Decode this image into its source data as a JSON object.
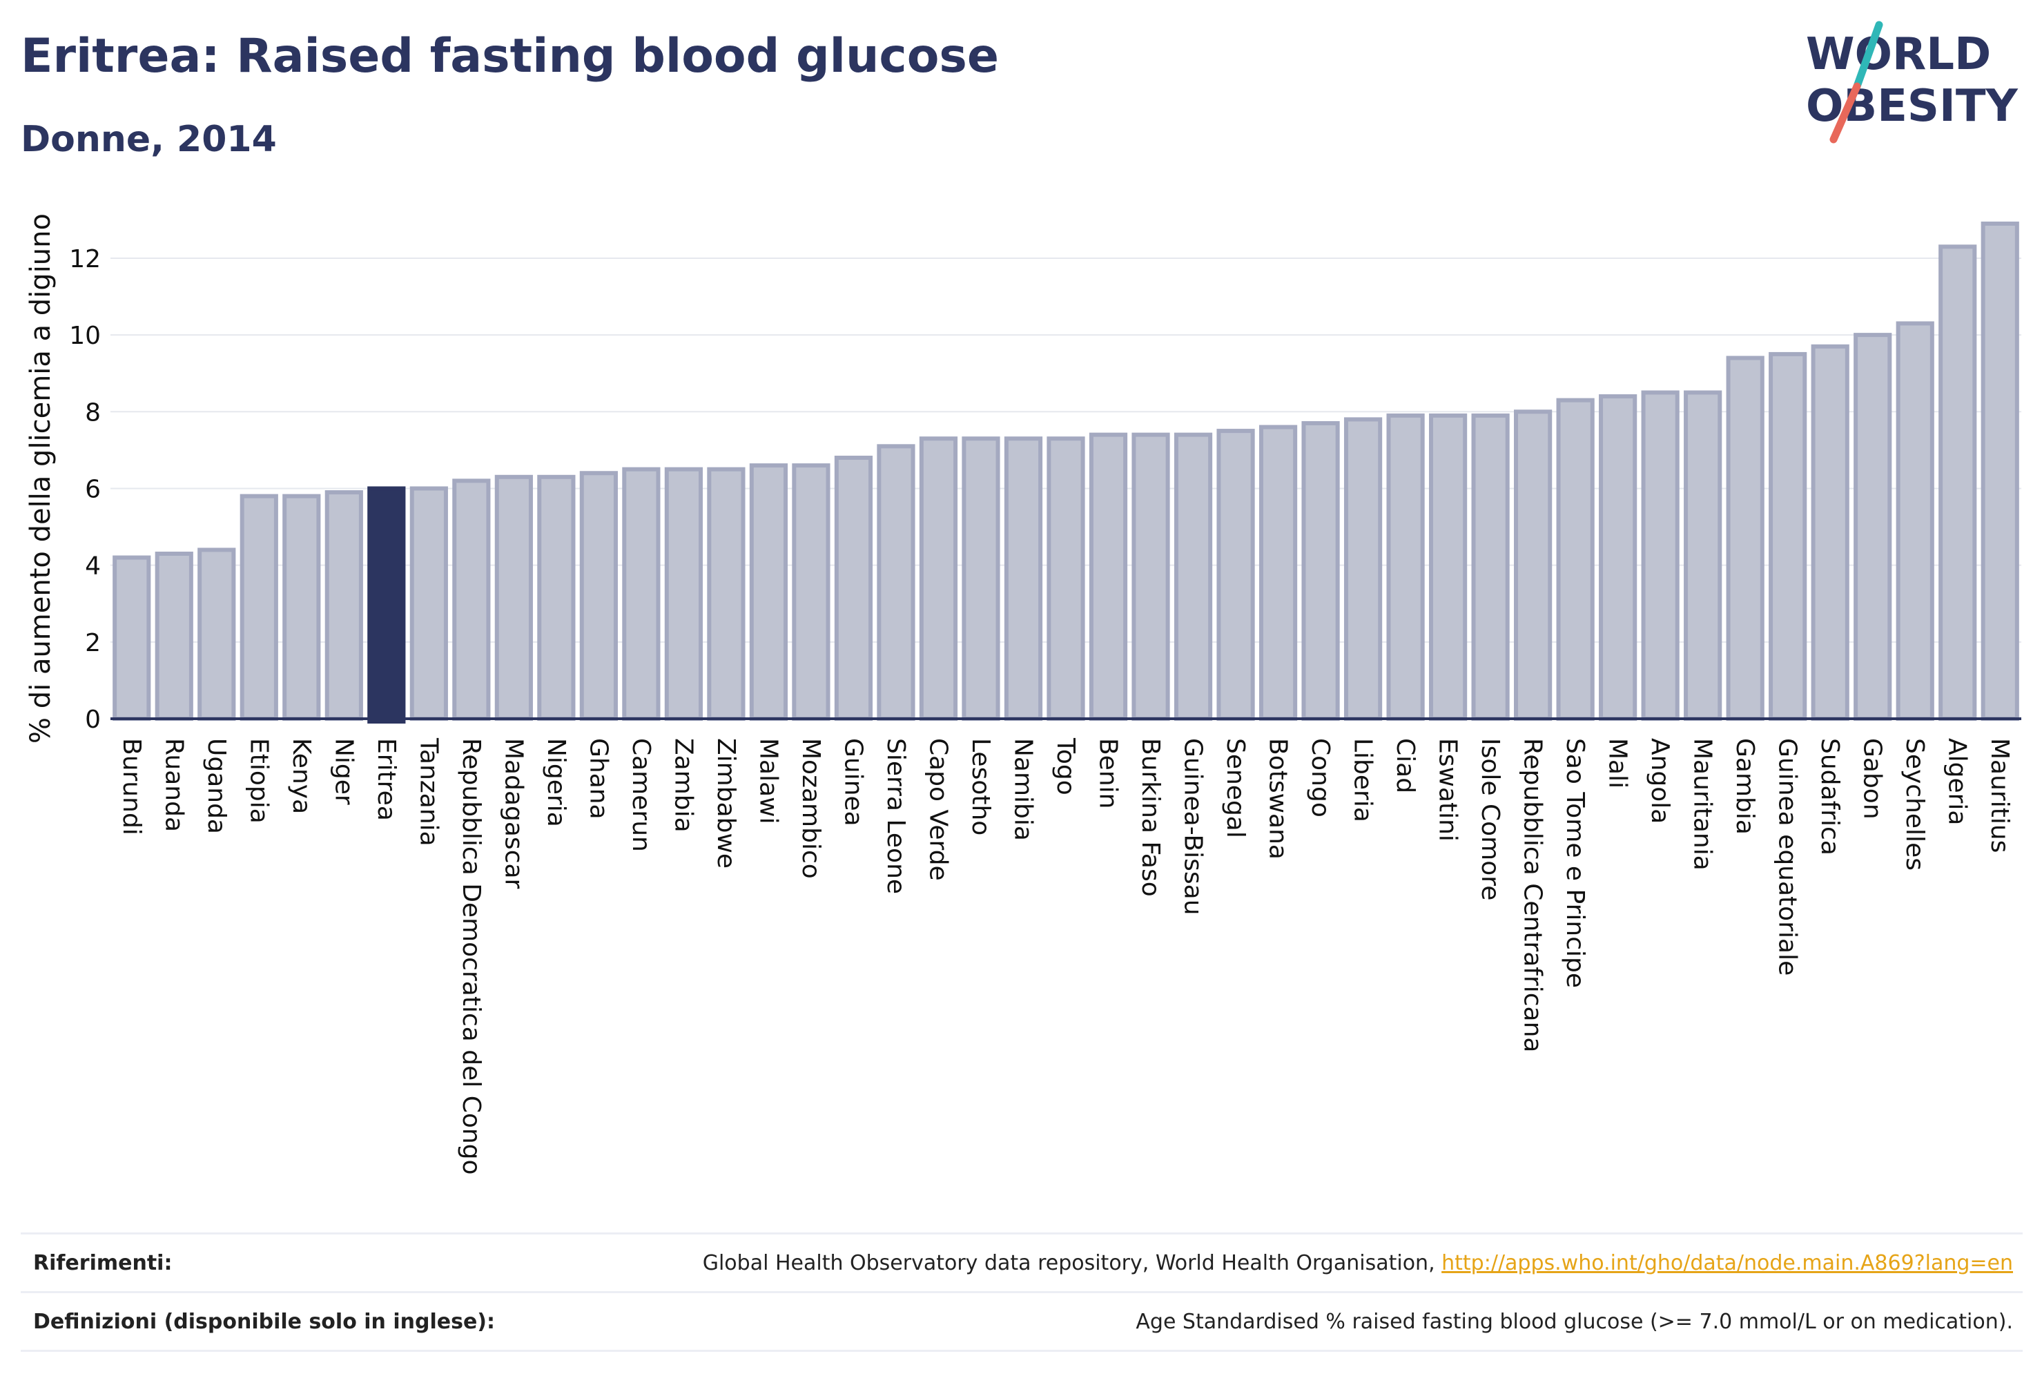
{
  "header": {
    "title": "Eritrea: Raised fasting blood glucose",
    "subtitle": "Donne, 2014"
  },
  "logo": {
    "line1": "WORLD",
    "line2": "OBESITY",
    "accent_colors": [
      "#2fb7b7",
      "#e8685a"
    ]
  },
  "chart_data": {
    "type": "bar",
    "title": "Eritrea: Raised fasting blood glucose",
    "subtitle": "Donne, 2014",
    "ylabel": "% di aumento della glicemia a digiuno",
    "xlabel": "",
    "ylim": [
      0,
      13.6
    ],
    "yticks": [
      0,
      2,
      4,
      6,
      8,
      10,
      12
    ],
    "grid": "horizontal",
    "highlight": "Eritrea",
    "colors": {
      "bar": "#bfc3d1",
      "bar_border": "#a4a9c0",
      "highlight": "#2c3560"
    },
    "categories": [
      "Burundi",
      "Ruanda",
      "Uganda",
      "Etiopia",
      "Kenya",
      "Niger",
      "Eritrea",
      "Tanzania",
      "Repubblica Democratica del Congo",
      "Madagascar",
      "Nigeria",
      "Ghana",
      "Camerun",
      "Zambia",
      "Zimbabwe",
      "Malawi",
      "Mozambico",
      "Guinea",
      "Sierra Leone",
      "Capo Verde",
      "Lesotho",
      "Namibia",
      "Togo",
      "Benin",
      "Burkina Faso",
      "Guinea-Bissau",
      "Senegal",
      "Botswana",
      "Congo",
      "Liberia",
      "Ciad",
      "Eswatini",
      "Isole Comore",
      "Repubblica Centrafricana",
      "Sao Tome e Principe",
      "Mali",
      "Angola",
      "Mauritania",
      "Gambia",
      "Guinea equatoriale",
      "Sudafrica",
      "Gabon",
      "Seychelles",
      "Algeria",
      "Mauritius"
    ],
    "values": [
      4.2,
      4.3,
      4.4,
      5.8,
      5.8,
      5.9,
      6.0,
      6.0,
      6.2,
      6.3,
      6.3,
      6.4,
      6.5,
      6.5,
      6.5,
      6.6,
      6.6,
      6.8,
      7.1,
      7.3,
      7.3,
      7.3,
      7.3,
      7.4,
      7.4,
      7.4,
      7.5,
      7.6,
      7.7,
      7.8,
      7.9,
      7.9,
      7.9,
      8.0,
      8.3,
      8.4,
      8.5,
      8.5,
      9.4,
      9.5,
      9.7,
      10.0,
      10.3,
      12.3,
      12.9
    ]
  },
  "references": {
    "sources_label": "Riferimenti:",
    "sources_text": "Global Health Observatory data repository, World Health Organisation, ",
    "sources_link": "http://apps.who.int/gho/data/node.main.A869?lang=en",
    "definitions_label": "Definizioni (disponibile solo in inglese):",
    "definitions_text": "Age Standardised % raised fasting blood glucose (>= 7.0 mmol/L or on medication)."
  }
}
